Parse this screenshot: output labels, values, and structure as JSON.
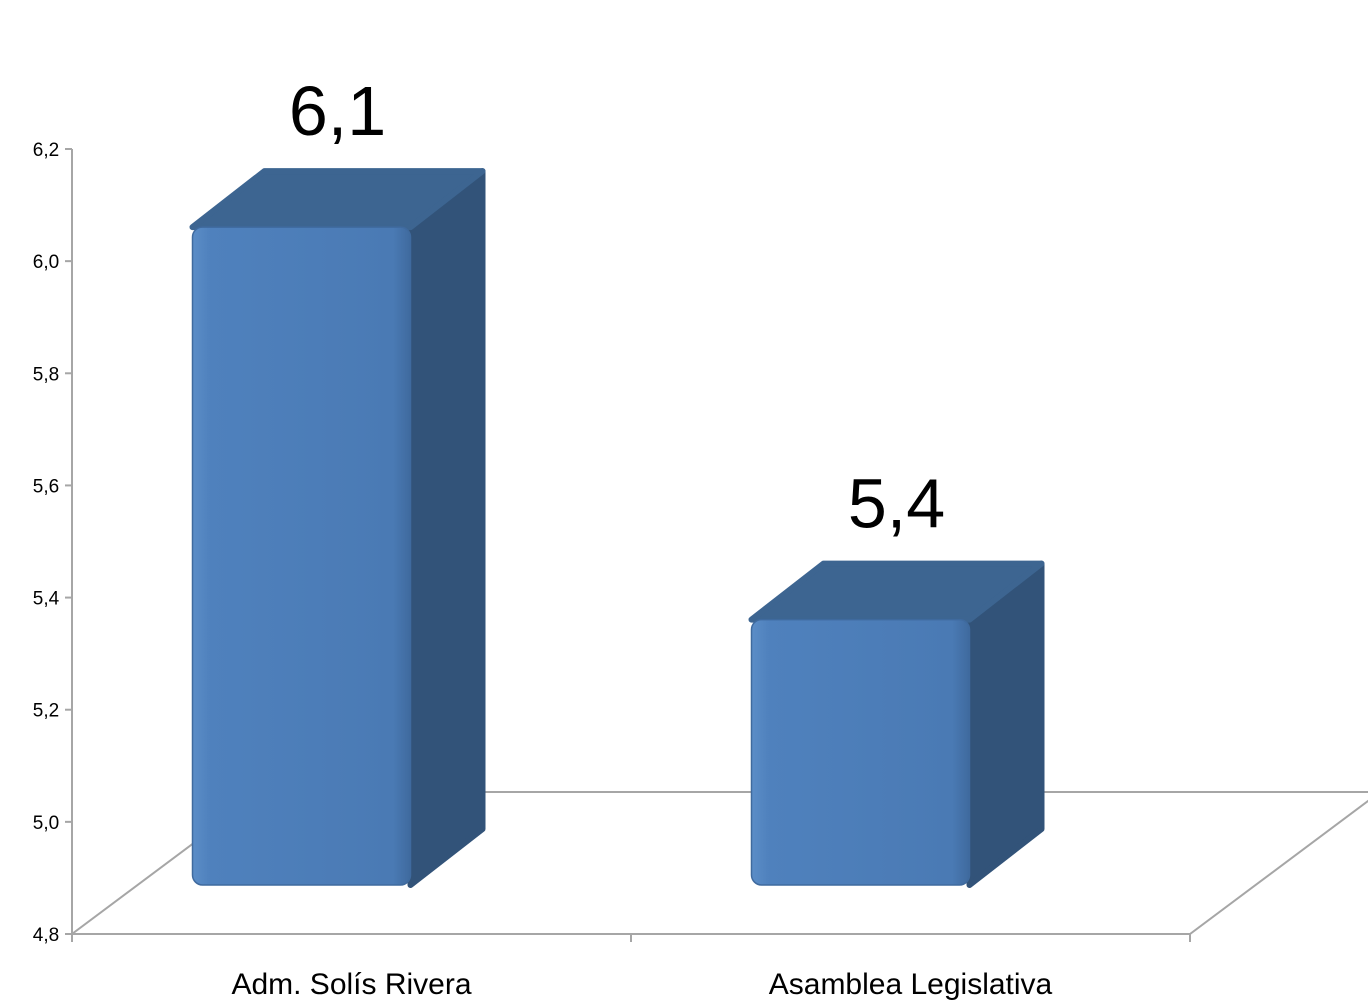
{
  "chart_data": {
    "type": "bar",
    "title": "",
    "xlabel": "",
    "ylabel": "",
    "categories": [
      "Adm. Solís Rivera",
      "Asamblea Legislativa"
    ],
    "values": [
      6.1,
      5.4
    ],
    "data_labels": [
      "6,1",
      "5,4"
    ],
    "ylim": [
      4.8,
      6.2
    ],
    "yticks": [
      4.8,
      5.0,
      5.2,
      5.4,
      5.6,
      5.8,
      6.0,
      6.2
    ],
    "ytick_labels": [
      "4,8",
      "5,0",
      "5,2",
      "5,4",
      "5,6",
      "5,8",
      "6,0",
      "6,2"
    ],
    "style": "3d-column",
    "grid": false,
    "legend": "none",
    "colors": {
      "bar_front": "#4f81bd",
      "bar_top": "#3d6591",
      "bar_side": "#325379",
      "axis": "#a6a6a6"
    }
  }
}
